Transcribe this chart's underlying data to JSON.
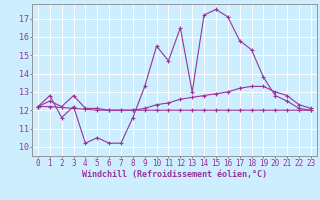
{
  "x": [
    0,
    1,
    2,
    3,
    4,
    5,
    6,
    7,
    8,
    9,
    10,
    11,
    12,
    13,
    14,
    15,
    16,
    17,
    18,
    19,
    20,
    21,
    22,
    23
  ],
  "line1": [
    12.2,
    12.8,
    11.6,
    12.2,
    10.2,
    10.5,
    10.2,
    10.2,
    11.6,
    13.3,
    15.5,
    14.7,
    16.5,
    13.0,
    17.2,
    17.5,
    17.1,
    15.8,
    15.3,
    13.8,
    12.8,
    12.5,
    12.1,
    12.0
  ],
  "line2": [
    12.2,
    12.2,
    12.15,
    12.1,
    12.05,
    12.0,
    12.0,
    12.0,
    12.0,
    12.0,
    12.0,
    12.0,
    12.0,
    12.0,
    12.0,
    12.0,
    12.0,
    12.0,
    12.0,
    12.0,
    12.0,
    12.0,
    12.0,
    12.0
  ],
  "line3": [
    12.2,
    12.5,
    12.2,
    12.8,
    12.1,
    12.1,
    12.0,
    12.0,
    12.0,
    12.1,
    12.3,
    12.4,
    12.6,
    12.7,
    12.8,
    12.9,
    13.0,
    13.2,
    13.3,
    13.3,
    13.0,
    12.8,
    12.3,
    12.1
  ],
  "line_color": "#993399",
  "bg_color": "#cceeff",
  "grid_color": "#ffffff",
  "ylabel_ticks": [
    10,
    11,
    12,
    13,
    14,
    15,
    16,
    17
  ],
  "ylim": [
    9.5,
    17.8
  ],
  "xlim": [
    -0.5,
    23.5
  ],
  "xlabel": "Windchill (Refroidissement éolien,°C)",
  "xlabel_color": "#993399",
  "tick_color": "#993399",
  "tick_fontsize": 5.5,
  "xlabel_fontsize": 6.0
}
